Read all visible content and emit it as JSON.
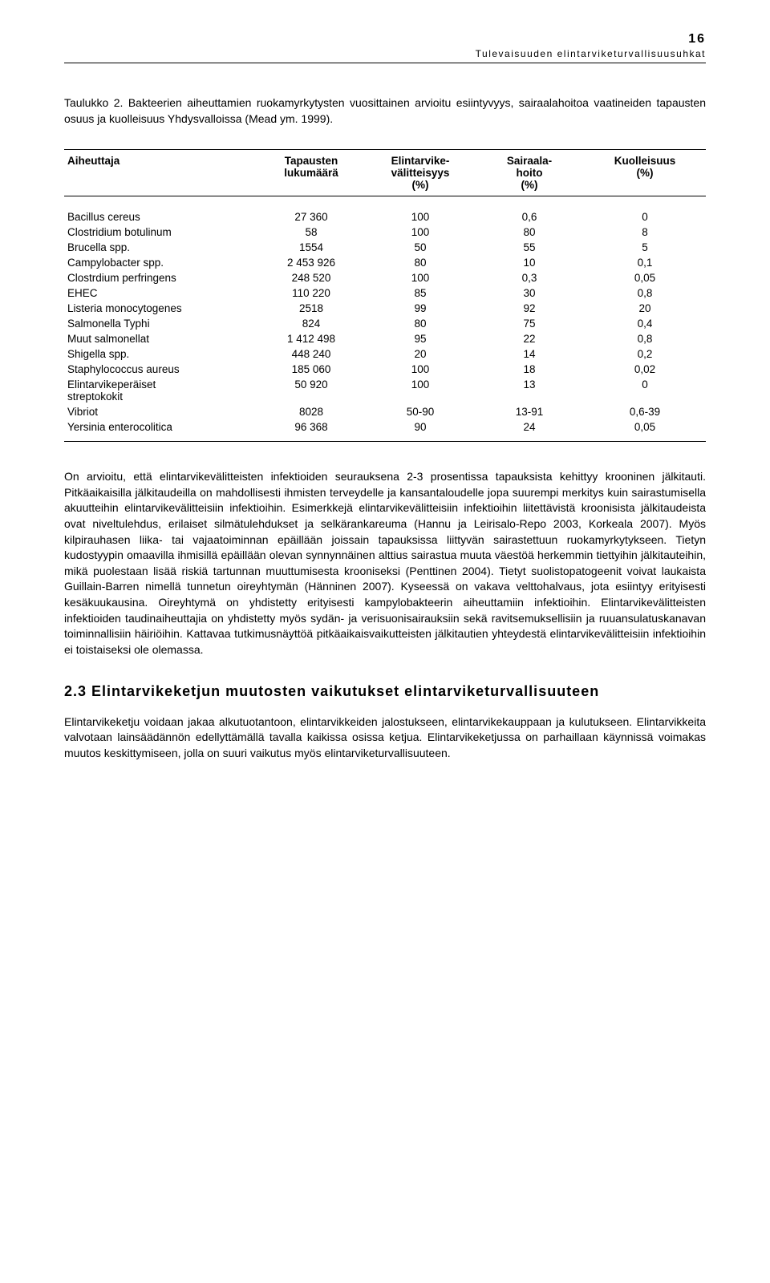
{
  "page_number": "16",
  "running_head": "Tulevaisuuden elintarviketurvallisuusuhkat",
  "caption": "Taulukko 2. Bakteerien aiheuttamien ruokamyrkytysten vuosittainen arvioitu esiintyvyys, sairaalahoitoa vaatineiden tapausten osuus ja kuolleisuus Yhdysvalloissa (Mead ym. 1999).",
  "table": {
    "headers": {
      "c0": "Aiheuttaja",
      "c1_l1": "Tapausten",
      "c1_l2": "lukumäärä",
      "c2_l1": "Elintarvike-",
      "c2_l2": "välitteisyys",
      "c2_l3": "(%)",
      "c3_l1": "Sairaala-",
      "c3_l2": "hoito",
      "c3_l3": "(%)",
      "c4_l1": "Kuolleisuus",
      "c4_l2": "(%)"
    },
    "rows": [
      {
        "name": "Bacillus cereus",
        "count": "27 360",
        "pct": "100",
        "hosp": "0,6",
        "death": "0"
      },
      {
        "name": "Clostridium botulinum",
        "count": "58",
        "pct": "100",
        "hosp": "80",
        "death": "8"
      },
      {
        "name": "Brucella spp.",
        "count": "1554",
        "pct": "50",
        "hosp": "55",
        "death": "5"
      },
      {
        "name": "Campylobacter spp.",
        "count": "2 453 926",
        "pct": "80",
        "hosp": "10",
        "death": "0,1"
      },
      {
        "name": "Clostrdium perfringens",
        "count": "248 520",
        "pct": "100",
        "hosp": "0,3",
        "death": "0,05"
      },
      {
        "name": "EHEC",
        "count": "110 220",
        "pct": "85",
        "hosp": "30",
        "death": "0,8"
      },
      {
        "name": "Listeria monocytogenes",
        "count": "2518",
        "pct": "99",
        "hosp": "92",
        "death": "20"
      },
      {
        "name": "Salmonella Typhi",
        "count": "824",
        "pct": "80",
        "hosp": "75",
        "death": "0,4"
      },
      {
        "name": "Muut salmonellat",
        "count": "1 412 498",
        "pct": "95",
        "hosp": "22",
        "death": "0,8"
      },
      {
        "name": "Shigella spp.",
        "count": "448 240",
        "pct": "20",
        "hosp": "14",
        "death": "0,2"
      },
      {
        "name": "Staphylococcus aureus",
        "count": "185 060",
        "pct": "100",
        "hosp": "18",
        "death": "0,02"
      },
      {
        "name": "Elintarvikeperäiset streptokokit",
        "count": "50 920",
        "pct": "100",
        "hosp": "13",
        "death": "0"
      },
      {
        "name": "Vibriot",
        "count": "8028",
        "pct": "50-90",
        "hosp": "13-91",
        "death": "0,6-39"
      },
      {
        "name": "Yersinia enterocolitica",
        "count": "96 368",
        "pct": "90",
        "hosp": "24",
        "death": "0,05"
      }
    ]
  },
  "para1": "On arvioitu, että elintarvikevälitteisten infektioiden seurauksena 2-3 prosentissa tapauksista kehittyy krooninen jälkitauti. Pitkäaikaisilla jälkitaudeilla on mahdollisesti ihmisten terveydelle ja kansantaloudelle jopa suurempi merkitys kuin sairastumisella akuutteihin elintarvikevälitteisiin infektioihin. Esimerkkejä elintarvikevälitteisiin infektioihin liitettävistä kroonisista jälkitaudeista ovat niveltulehdus, erilaiset silmätulehdukset ja selkärankareuma (Hannu ja Leirisalo-Repo 2003, Korkeala 2007). Myös kilpirauhasen liika- tai vajaatoiminnan epäillään joissain tapauksissa liittyvän sairastettuun ruokamyrkytykseen. Tietyn kudostyypin omaavilla ihmisillä epäillään olevan synnynnäinen alttius sairastua muuta väestöä herkemmin tiettyihin jälkitauteihin, mikä puolestaan lisää riskiä tartunnan muuttumisesta krooniseksi (Penttinen 2004). Tietyt suolistopatogeenit voivat laukaista Guillain-Barren nimellä tunnetun oireyhtymän (Hänninen 2007). Kyseessä on vakava velttohalvaus, jota esiintyy erityisesti kesäkuukausina. Oireyhtymä on yhdistetty erityisesti kampylobakteerin aiheuttamiin infektioihin. Elintarvikevälitteisten infektioiden taudinaiheuttajia on yhdistetty myös sydän- ja verisuonisairauksiin sekä ravitsemuksellisiin ja ruuansulatuskanavan toiminnallisiin häiriöihin. Kattavaa tutkimusnäyttöä pitkäaikaisvaikutteisten jälkitautien yhteydestä elintarvikevälitteisiin infektioihin ei toistaiseksi ole olemassa.",
  "section_title": "2.3 Elintarvikeketjun muutosten vaikutukset elintarviketurvallisuuteen",
  "para2": "Elintarvikeketju voidaan jakaa alkutuotantoon, elintarvikkeiden jalostukseen, elintarvikekauppaan ja kulutukseen. Elintarvikkeita valvotaan lainsäädännön edellyttämällä tavalla kaikissa osissa ketjua. Elintarvikeketjussa on parhaillaan käynnissä voimakas muutos keskittymiseen, jolla on suuri vaikutus myös elintarviketurvallisuuteen."
}
